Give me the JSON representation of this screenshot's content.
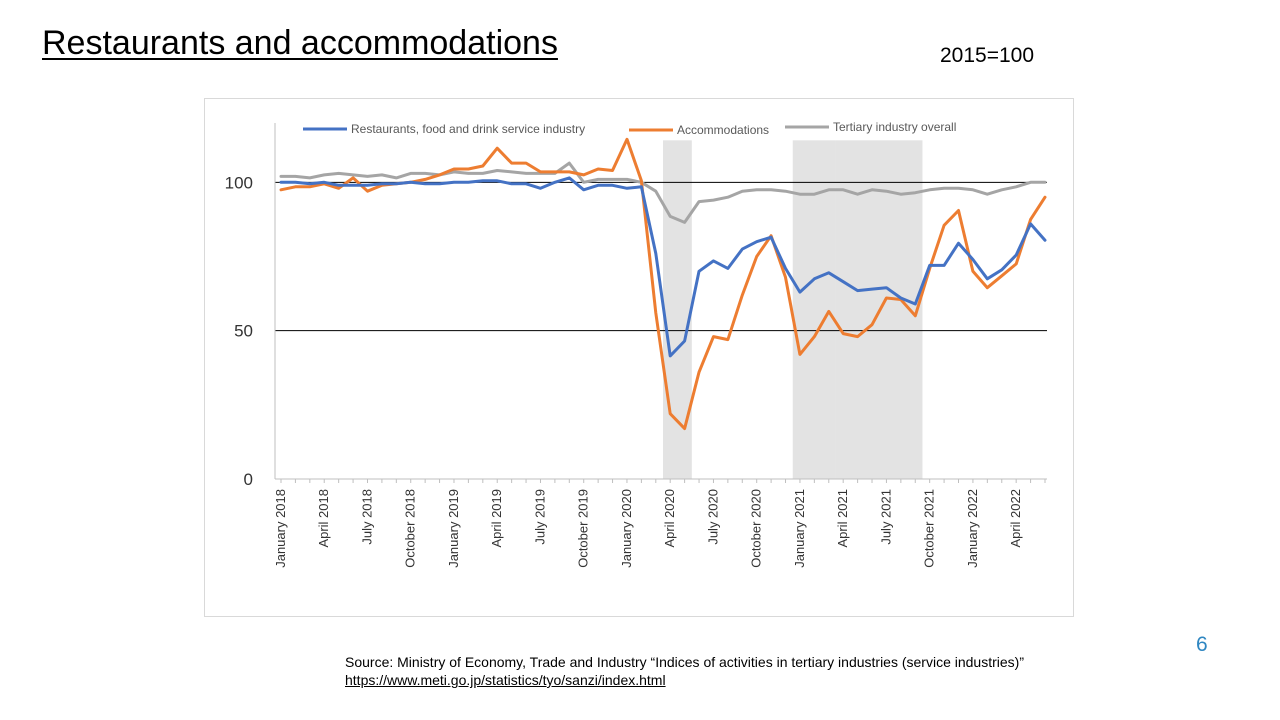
{
  "slide": {
    "title": "Restaurants and accommodations",
    "base_note": "2015=100",
    "page_number": "6",
    "source_text": "Source: Ministry of Economy, Trade and Industry “Indices of activities in tertiary industries (service industries)”",
    "source_link": "https://www.meti.go.jp/statistics/tyo/sanzi/index.html"
  },
  "colors": {
    "restaurants": "#4472c4",
    "accommodations": "#ed7d31",
    "tertiary": "#a5a5a5",
    "shade": "#e3e3e3"
  },
  "chart_data": {
    "type": "line",
    "title": "",
    "xlabel": "",
    "ylabel": "",
    "ylim": [
      0,
      120
    ],
    "yticks": [
      0,
      50,
      100
    ],
    "gridlines_at": [
      50,
      100
    ],
    "legend_position": "top",
    "x": [
      "2018-01",
      "2018-02",
      "2018-03",
      "2018-04",
      "2018-05",
      "2018-06",
      "2018-07",
      "2018-08",
      "2018-09",
      "2018-10",
      "2018-11",
      "2018-12",
      "2019-01",
      "2019-02",
      "2019-03",
      "2019-04",
      "2019-05",
      "2019-06",
      "2019-07",
      "2019-08",
      "2019-09",
      "2019-10",
      "2019-11",
      "2019-12",
      "2020-01",
      "2020-02",
      "2020-03",
      "2020-04",
      "2020-05",
      "2020-06",
      "2020-07",
      "2020-08",
      "2020-09",
      "2020-10",
      "2020-11",
      "2020-12",
      "2021-01",
      "2021-02",
      "2021-03",
      "2021-04",
      "2021-05",
      "2021-06",
      "2021-07",
      "2021-08",
      "2021-09",
      "2021-10",
      "2021-11",
      "2021-12",
      "2022-01",
      "2022-02",
      "2022-03",
      "2022-04",
      "2022-05",
      "2022-06"
    ],
    "x_tick_labels": [
      {
        "index": 0,
        "label": "January 2018"
      },
      {
        "index": 3,
        "label": "April 2018"
      },
      {
        "index": 6,
        "label": "July 2018"
      },
      {
        "index": 9,
        "label": "October 2018"
      },
      {
        "index": 12,
        "label": "January 2019"
      },
      {
        "index": 15,
        "label": "April 2019"
      },
      {
        "index": 18,
        "label": "July 2019"
      },
      {
        "index": 21,
        "label": "October 2019"
      },
      {
        "index": 24,
        "label": "January 2020"
      },
      {
        "index": 27,
        "label": "April 2020"
      },
      {
        "index": 30,
        "label": "July 2020"
      },
      {
        "index": 33,
        "label": "October 2020"
      },
      {
        "index": 36,
        "label": "January 2021"
      },
      {
        "index": 39,
        "label": "April 2021"
      },
      {
        "index": 42,
        "label": "July 2021"
      },
      {
        "index": 45,
        "label": "October 2021"
      },
      {
        "index": 48,
        "label": "January 2022"
      },
      {
        "index": 51,
        "label": "April 2022"
      }
    ],
    "shaded_periods": [
      {
        "start": "2020-04",
        "end": "2020-05"
      },
      {
        "start": "2021-01",
        "end": "2021-03"
      },
      {
        "start": "2021-04",
        "end": "2021-09"
      }
    ],
    "series": [
      {
        "key": "restaurants",
        "name": "Restaurants, food and drink service industry",
        "values": [
          100,
          100,
          99.5,
          100,
          99,
          99,
          99,
          99.5,
          99.5,
          100,
          99.5,
          99.5,
          100,
          100,
          100.5,
          100.5,
          99.5,
          99.5,
          98,
          100,
          101.5,
          97.5,
          99,
          99,
          98,
          98.5,
          76,
          41.5,
          46.5,
          70,
          73.5,
          71,
          77.5,
          80,
          81.5,
          71,
          63,
          67.5,
          69.5,
          66.5,
          63.5,
          64,
          64.5,
          61,
          59,
          72,
          72,
          79.5,
          74,
          67.5,
          70.5,
          75.5,
          86,
          80.5
        ]
      },
      {
        "key": "accommodations",
        "name": "Accommodations",
        "values": [
          97.5,
          98.5,
          98.5,
          99.5,
          98,
          101.5,
          97,
          99,
          99.5,
          100,
          101,
          102.5,
          104.5,
          104.5,
          105.5,
          111.5,
          106.5,
          106.5,
          103.5,
          103.5,
          103.5,
          102.5,
          104.5,
          104,
          114.5,
          100.5,
          56,
          22,
          17,
          36,
          48,
          47,
          62,
          75,
          82,
          68,
          42,
          48,
          56.5,
          49,
          48,
          52,
          61,
          60.5,
          55,
          71,
          85.5,
          90.5,
          70,
          64.5,
          68.5,
          72.5,
          87.5,
          95
        ]
      },
      {
        "key": "tertiary",
        "name": "Tertiary industry overall",
        "values": [
          102,
          102,
          101.5,
          102.5,
          103,
          102.5,
          102,
          102.5,
          101.5,
          103,
          103,
          102.5,
          103.5,
          103,
          103,
          104,
          103.5,
          103,
          103,
          103,
          106.5,
          100,
          101,
          101,
          101,
          100,
          97,
          88.5,
          86.5,
          93.5,
          94,
          95,
          97,
          97.5,
          97.5,
          97,
          96,
          96,
          97.5,
          97.5,
          96,
          97.5,
          97,
          96,
          96.5,
          97.5,
          98,
          98,
          97.5,
          96,
          97.5,
          98.5,
          100,
          100
        ]
      }
    ]
  }
}
